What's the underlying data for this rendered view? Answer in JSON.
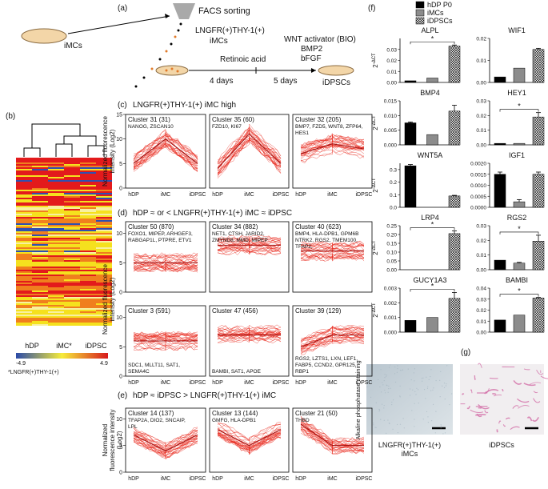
{
  "figure": {
    "a": {
      "label": "(a)",
      "source": "iMCs",
      "step": "FACS sorting",
      "sorted": [
        "LNGFR(+)THY-1(+)",
        "iMCs"
      ],
      "factors": [
        "WNT activator (BIO)",
        "BMP2",
        "bFGF"
      ],
      "first_factor": "Retinoic acid",
      "durations": [
        "4 days",
        "5 days"
      ],
      "result": "iDPSCs"
    },
    "b": {
      "label": "(b)",
      "columns": [
        "hDP",
        "iMC*",
        "iDPSC"
      ],
      "colorbar": {
        "min": -4.9,
        "max": 4.9
      },
      "footnote": "*LNGFR(+)THY-1(+)"
    },
    "g": {
      "label": "(g)",
      "ylabel": "Alkaline phosphatase staining",
      "captions": [
        [
          "LNGFR(+)THY-1(+)",
          "iMCs"
        ],
        [
          "iDPSCs"
        ]
      ]
    }
  },
  "chart_data": [
    {
      "type": "facet-line",
      "label": "(c)",
      "title": "LNGFR(+)THY-1(+) iMC high",
      "ylabel": "Normalized fluorescence intensity (Log2)",
      "categories": [
        "hDP",
        "iMC",
        "iDPSC"
      ],
      "ylim": [
        0,
        15
      ],
      "yticks": [
        0,
        5,
        10,
        15
      ],
      "color": "#e8281c",
      "series": [
        {
          "name": "Cluster 31 (31)",
          "genes": [
            "NANOG, ZSCAN10"
          ],
          "values": [
            5,
            10,
            5
          ]
        },
        {
          "name": "Cluster 35 (60)",
          "genes": [
            "FZD10, KI67"
          ],
          "values": [
            4,
            11,
            5
          ]
        },
        {
          "name": "Cluster 32 (205)",
          "genes": [
            "BMP7, FZD5, WNT8, ZFP64,",
            "HES1"
          ],
          "values": [
            7,
            9,
            8
          ]
        }
      ]
    },
    {
      "type": "facet-line",
      "label": "(d)",
      "title": "hDP ≈ or < LNGFR(+)THY-1(+) iMC ≈ iDPSC",
      "ylabel": "Normalized fluorescence intensity (Log2)",
      "categories": [
        "hDP",
        "iMC",
        "iDPSC"
      ],
      "ylim": [
        0,
        12
      ],
      "yticks": [
        0,
        5,
        10
      ],
      "color": "#e8281c",
      "series": [
        {
          "name": "Cluster 50 (870)",
          "genes": [
            "FOXO1, MIPEP, ARHGEF3,",
            "RABGAP1L, PTPRE, ETV1"
          ],
          "values": [
            5,
            5,
            5
          ]
        },
        {
          "name": "Cluster 34 (882)",
          "genes": [
            "NET1, CTSH, JARID2,",
            "ZMYND8, MMD, MIPEP"
          ],
          "values": [
            8,
            8,
            8
          ]
        },
        {
          "name": "Cluster 40 (623)",
          "genes": [
            "BMP4, HLA-DPB1, GPM6B",
            "NTRK2, RGS2, TMEM100,",
            "TFAP2,"
          ],
          "values": [
            7,
            7,
            7
          ]
        },
        {
          "name": "Cluster 3 (591)",
          "genes": [
            "SDC1, MLLT11, SAT1,",
            "SEMA4C"
          ],
          "values": [
            6,
            6,
            6
          ]
        },
        {
          "name": "Cluster 47 (456)",
          "genes": [
            "BAMBI, SAT1, APOE"
          ],
          "values": [
            7,
            7,
            7
          ]
        },
        {
          "name": "Cluster 39 (129)",
          "genes": [
            "RGS2, LZTS1, LXN, LEF1,",
            "FABP5, CCND2, GPR125,",
            "RBP1"
          ],
          "values": [
            5,
            7,
            7
          ]
        }
      ]
    },
    {
      "type": "facet-line",
      "label": "(e)",
      "title": "hDP ≈ iDPSC > LNGFR(+)THY-1(+) iMC",
      "ylabel": "Normalized fluorescence intensity (Log2)",
      "categories": [
        "hDP",
        "iMC",
        "iDPSC"
      ],
      "ylim": [
        0,
        12
      ],
      "yticks": [
        0,
        5,
        10
      ],
      "color": "#e8281c",
      "series": [
        {
          "name": "Cluster 14 (137)",
          "genes": [
            "TFAP2A, DIO2, SNCAIP,",
            "LPL"
          ],
          "values": [
            7,
            4,
            7
          ]
        },
        {
          "name": "Cluster 13 (144)",
          "genes": [
            "GMFG, HLA-DPB1"
          ],
          "values": [
            8,
            5,
            8
          ]
        },
        {
          "name": "Cluster 21 (50)",
          "genes": [
            "THBD"
          ],
          "values": [
            9,
            5,
            5
          ]
        }
      ]
    },
    {
      "type": "bar-grid",
      "label": "(f)",
      "ylabel": {
        "base": "2",
        "exponent": "-ΔCT"
      },
      "series": [
        {
          "name": "hDP P0",
          "color": "#000000"
        },
        {
          "name": "iMCs",
          "color": "#8c8c8c"
        },
        {
          "name": "iDPSCs",
          "color": "#ffffff",
          "pattern": "crosshatch"
        }
      ],
      "panels": [
        {
          "title": "ALPL",
          "values": [
            0.0015,
            0.004,
            0.033
          ],
          "errors": [
            null,
            null,
            0.001
          ],
          "ylim": [
            0,
            0.04
          ],
          "yticks": [
            {
              "value": 0,
              "label": "0.00"
            },
            0.01,
            0.02,
            0.03
          ],
          "significance": "*"
        },
        {
          "title": "WIF1",
          "values": [
            0.0025,
            0.0065,
            0.015
          ],
          "errors": [
            null,
            null,
            0.0005
          ],
          "ylim": [
            0,
            0.02
          ],
          "yticks": [
            {
              "value": 0,
              "label": "0.00"
            },
            0.01,
            0.02
          ]
        },
        {
          "title": "BMP4",
          "values": [
            0.0075,
            0.0035,
            0.0115
          ],
          "errors": [
            0.0003,
            null,
            0.002
          ],
          "ylim": [
            0,
            0.015
          ],
          "yticks": [
            {
              "value": 0,
              "label": "0.000"
            },
            0.005,
            {
              "value": 0.01,
              "label": "0.010"
            },
            0.015
          ]
        },
        {
          "title": "HEY1",
          "values": [
            0.001,
            0.001,
            0.019
          ],
          "errors": [
            null,
            null,
            0.003
          ],
          "ylim": [
            0,
            0.03
          ],
          "yticks": [
            {
              "value": 0,
              "label": "0.00"
            },
            0.01,
            0.02,
            0.03
          ],
          "significance": "*"
        },
        {
          "title": "WNT5A",
          "values": [
            0.33,
            0,
            0.09
          ],
          "errors": [
            0.01,
            null,
            0.005
          ],
          "ylim": [
            0,
            0.35
          ],
          "yticks": [
            {
              "value": 0,
              "label": "0.0"
            },
            0.1,
            0.2,
            0.3
          ]
        },
        {
          "title": "IGF1",
          "values": [
            0.0015,
            0.00025,
            0.0015
          ],
          "errors": [
            0.0001,
            0.0001,
            0.0001
          ],
          "ylim": [
            0,
            0.002
          ],
          "yticks": [
            {
              "value": 0,
              "label": "0.0000"
            },
            0.0005,
            {
              "value": 0.001,
              "label": "0.0010"
            },
            0.0015,
            {
              "value": 0.002,
              "label": "0.0020"
            }
          ]
        },
        {
          "title": "LRP4",
          "values": [
            0,
            0,
            0.205
          ],
          "errors": [
            null,
            null,
            0.015
          ],
          "ylim": [
            0,
            0.25
          ],
          "yticks": [
            {
              "value": 0,
              "label": "0.00"
            },
            0.05,
            {
              "value": 0.1,
              "label": "0.10"
            },
            0.15,
            {
              "value": 0.2,
              "label": "0.20"
            },
            0.25
          ],
          "significance": "*"
        },
        {
          "title": "RGS2",
          "values": [
            0.0065,
            0.0045,
            0.0195
          ],
          "errors": [
            null,
            0.0005,
            0.004
          ],
          "ylim": [
            0,
            0.03
          ],
          "yticks": [
            {
              "value": 0,
              "label": "0.00"
            },
            0.01,
            0.02,
            0.03
          ],
          "significance": "*"
        },
        {
          "title": "GUCY1A3",
          "values": [
            0.0008,
            0.001,
            0.0023
          ],
          "errors": [
            null,
            null,
            0.0004
          ],
          "ylim": [
            0,
            0.003
          ],
          "yticks": [
            {
              "value": 0,
              "label": "0.000"
            },
            0.001,
            0.002,
            0.003
          ],
          "significance": "*"
        },
        {
          "title": "BAMBI",
          "values": [
            0.011,
            0.0155,
            0.031
          ],
          "errors": [
            null,
            null,
            0.0005
          ],
          "ylim": [
            0,
            0.04
          ],
          "yticks": [
            {
              "value": 0,
              "label": "0.00"
            },
            0.01,
            0.02,
            0.03,
            0.04
          ],
          "significance": "*"
        }
      ]
    }
  ]
}
